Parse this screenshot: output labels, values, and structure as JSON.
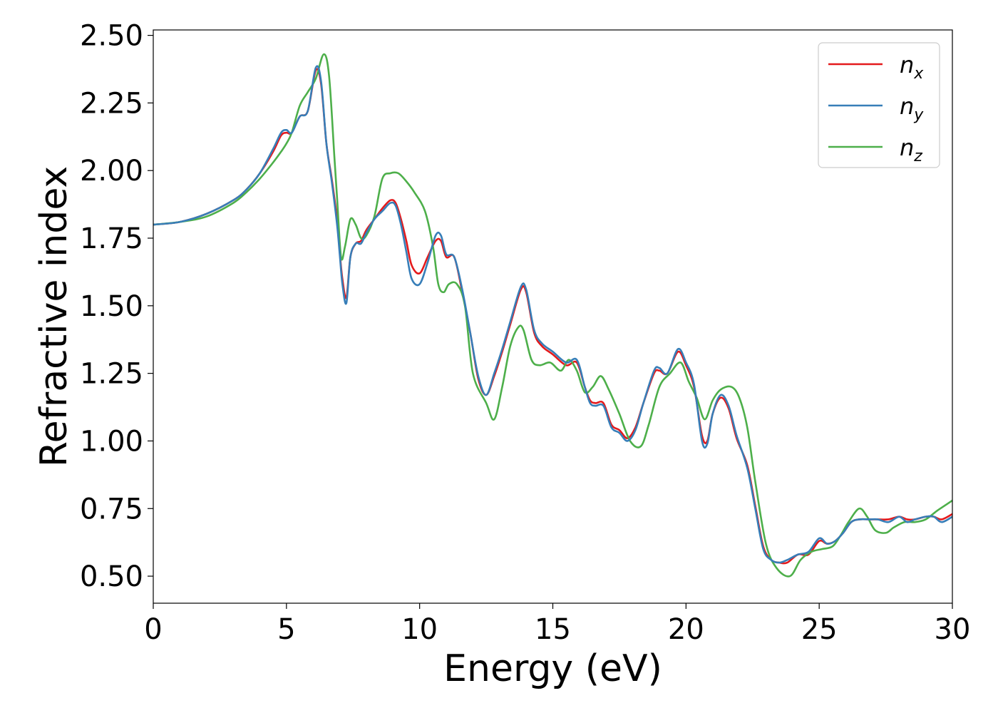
{
  "chart_data": {
    "type": "line",
    "title": "",
    "xlabel": "Energy (eV)",
    "ylabel": "Refractive index",
    "xlim": [
      0,
      30
    ],
    "ylim": [
      0.4,
      2.52
    ],
    "xticks": [
      0,
      5,
      10,
      15,
      20,
      25,
      30
    ],
    "xtick_labels": [
      "0",
      "5",
      "10",
      "15",
      "20",
      "25",
      "30"
    ],
    "yticks": [
      0.5,
      0.75,
      1.0,
      1.25,
      1.5,
      1.75,
      2.0,
      2.25,
      2.5
    ],
    "ytick_labels": [
      "0.50",
      "0.75",
      "1.00",
      "1.25",
      "1.50",
      "1.75",
      "2.00",
      "2.25",
      "2.50"
    ],
    "grid": false,
    "legend_position": "top-right",
    "series": [
      {
        "name": "n_x",
        "name_base": "n",
        "name_sub": "x",
        "color": "#e41a1c",
        "x": [
          0,
          1,
          2,
          3,
          3.5,
          4,
          4.5,
          4.8,
          5.0,
          5.2,
          5.5,
          5.8,
          6.1,
          6.3,
          6.5,
          6.7,
          6.9,
          7.0,
          7.1,
          7.25,
          7.4,
          7.6,
          7.8,
          8.0,
          8.3,
          8.6,
          8.9,
          9.1,
          9.3,
          9.5,
          9.7,
          10.0,
          10.3,
          10.6,
          10.8,
          11.0,
          11.3,
          11.6,
          11.9,
          12.2,
          12.5,
          12.8,
          13.1,
          13.4,
          13.8,
          14.0,
          14.3,
          14.6,
          15.0,
          15.5,
          15.9,
          16.2,
          16.4,
          16.6,
          16.9,
          17.2,
          17.5,
          17.8,
          18.1,
          18.4,
          18.8,
          19.0,
          19.3,
          19.7,
          20.0,
          20.3,
          20.6,
          20.8,
          21.0,
          21.3,
          21.6,
          21.9,
          22.3,
          22.6,
          22.9,
          23.2,
          23.5,
          23.8,
          24.2,
          24.6,
          25.0,
          25.3,
          25.6,
          25.9,
          26.2,
          26.5,
          26.9,
          27.2,
          27.6,
          28.0,
          28.3,
          28.6,
          29.0,
          29.3,
          29.6,
          30.0
        ],
        "y": [
          1.8,
          1.81,
          1.84,
          1.89,
          1.93,
          1.99,
          2.07,
          2.13,
          2.14,
          2.14,
          2.2,
          2.22,
          2.37,
          2.32,
          2.1,
          1.97,
          1.82,
          1.7,
          1.6,
          1.53,
          1.68,
          1.73,
          1.74,
          1.78,
          1.82,
          1.86,
          1.89,
          1.88,
          1.82,
          1.74,
          1.65,
          1.62,
          1.68,
          1.74,
          1.74,
          1.68,
          1.68,
          1.55,
          1.4,
          1.23,
          1.17,
          1.24,
          1.33,
          1.43,
          1.56,
          1.55,
          1.4,
          1.35,
          1.32,
          1.28,
          1.29,
          1.2,
          1.15,
          1.14,
          1.14,
          1.06,
          1.04,
          1.01,
          1.05,
          1.14,
          1.25,
          1.26,
          1.25,
          1.33,
          1.28,
          1.2,
          1.02,
          1.0,
          1.1,
          1.16,
          1.12,
          1.01,
          0.91,
          0.76,
          0.61,
          0.56,
          0.55,
          0.55,
          0.58,
          0.58,
          0.63,
          0.62,
          0.63,
          0.66,
          0.7,
          0.71,
          0.71,
          0.71,
          0.71,
          0.72,
          0.71,
          0.71,
          0.72,
          0.72,
          0.71,
          0.73
        ]
      },
      {
        "name": "n_y",
        "name_base": "n",
        "name_sub": "y",
        "color": "#377eb8",
        "x": [
          0,
          1,
          2,
          3,
          3.5,
          4,
          4.5,
          4.8,
          5.0,
          5.2,
          5.5,
          5.8,
          6.1,
          6.3,
          6.5,
          6.7,
          6.9,
          7.0,
          7.1,
          7.25,
          7.4,
          7.6,
          7.8,
          8.0,
          8.3,
          8.6,
          8.9,
          9.1,
          9.3,
          9.5,
          9.7,
          10.0,
          10.3,
          10.6,
          10.8,
          11.0,
          11.3,
          11.6,
          11.9,
          12.2,
          12.5,
          12.8,
          13.1,
          13.4,
          13.8,
          14.0,
          14.3,
          14.6,
          15.0,
          15.5,
          15.9,
          16.2,
          16.4,
          16.6,
          16.9,
          17.2,
          17.5,
          17.8,
          18.1,
          18.4,
          18.8,
          19.0,
          19.3,
          19.7,
          20.0,
          20.3,
          20.6,
          20.8,
          21.0,
          21.3,
          21.6,
          21.9,
          22.3,
          22.6,
          22.9,
          23.2,
          23.5,
          23.8,
          24.2,
          24.6,
          25.0,
          25.3,
          25.6,
          25.9,
          26.2,
          26.5,
          26.9,
          27.2,
          27.6,
          28.0,
          28.3,
          28.6,
          29.0,
          29.3,
          29.6,
          30.0
        ],
        "y": [
          1.8,
          1.81,
          1.84,
          1.89,
          1.93,
          1.99,
          2.08,
          2.14,
          2.15,
          2.14,
          2.2,
          2.22,
          2.38,
          2.33,
          2.1,
          1.96,
          1.8,
          1.69,
          1.58,
          1.51,
          1.68,
          1.73,
          1.73,
          1.77,
          1.82,
          1.85,
          1.88,
          1.87,
          1.8,
          1.7,
          1.6,
          1.58,
          1.66,
          1.76,
          1.76,
          1.69,
          1.68,
          1.56,
          1.4,
          1.24,
          1.17,
          1.25,
          1.34,
          1.44,
          1.57,
          1.56,
          1.41,
          1.36,
          1.33,
          1.29,
          1.3,
          1.2,
          1.14,
          1.13,
          1.13,
          1.05,
          1.03,
          1.0,
          1.04,
          1.14,
          1.26,
          1.27,
          1.25,
          1.34,
          1.29,
          1.21,
          1.0,
          0.99,
          1.1,
          1.17,
          1.13,
          1.02,
          0.9,
          0.75,
          0.6,
          0.56,
          0.55,
          0.56,
          0.58,
          0.59,
          0.64,
          0.62,
          0.63,
          0.66,
          0.7,
          0.71,
          0.71,
          0.71,
          0.7,
          0.72,
          0.7,
          0.71,
          0.72,
          0.72,
          0.7,
          0.72
        ]
      },
      {
        "name": "n_z",
        "name_base": "n",
        "name_sub": "z",
        "color": "#4daf4a",
        "x": [
          0,
          1,
          2,
          3,
          3.5,
          4,
          4.5,
          4.8,
          5.0,
          5.2,
          5.5,
          5.8,
          6.1,
          6.4,
          6.6,
          6.8,
          6.9,
          7.05,
          7.2,
          7.4,
          7.6,
          7.8,
          8.0,
          8.3,
          8.6,
          8.9,
          9.2,
          9.5,
          9.8,
          10.2,
          10.5,
          10.7,
          10.9,
          11.1,
          11.4,
          11.7,
          12.0,
          12.5,
          12.8,
          13.1,
          13.4,
          13.7,
          13.9,
          14.2,
          14.5,
          14.9,
          15.3,
          15.6,
          15.9,
          16.2,
          16.5,
          16.8,
          17.1,
          17.5,
          17.9,
          18.3,
          18.6,
          19.0,
          19.4,
          19.8,
          20.1,
          20.4,
          20.7,
          21.0,
          21.3,
          21.7,
          22.0,
          22.3,
          22.6,
          23.0,
          23.4,
          23.9,
          24.3,
          24.7,
          25.1,
          25.5,
          25.8,
          26.1,
          26.5,
          26.8,
          27.1,
          27.5,
          27.8,
          28.2,
          28.6,
          29.0,
          29.4,
          29.7,
          30.0
        ],
        "y": [
          1.8,
          1.81,
          1.83,
          1.88,
          1.92,
          1.97,
          2.03,
          2.07,
          2.1,
          2.14,
          2.24,
          2.29,
          2.34,
          2.43,
          2.35,
          2.05,
          1.9,
          1.68,
          1.72,
          1.82,
          1.8,
          1.75,
          1.76,
          1.83,
          1.97,
          1.99,
          1.99,
          1.96,
          1.92,
          1.85,
          1.72,
          1.58,
          1.55,
          1.58,
          1.58,
          1.5,
          1.25,
          1.14,
          1.08,
          1.2,
          1.35,
          1.42,
          1.41,
          1.3,
          1.28,
          1.29,
          1.26,
          1.3,
          1.26,
          1.18,
          1.2,
          1.24,
          1.19,
          1.1,
          1.0,
          0.98,
          1.06,
          1.2,
          1.25,
          1.29,
          1.22,
          1.16,
          1.08,
          1.15,
          1.19,
          1.2,
          1.16,
          1.05,
          0.85,
          0.62,
          0.53,
          0.5,
          0.56,
          0.59,
          0.6,
          0.61,
          0.65,
          0.7,
          0.75,
          0.72,
          0.67,
          0.66,
          0.68,
          0.7,
          0.7,
          0.71,
          0.74,
          0.76,
          0.78
        ]
      }
    ]
  }
}
